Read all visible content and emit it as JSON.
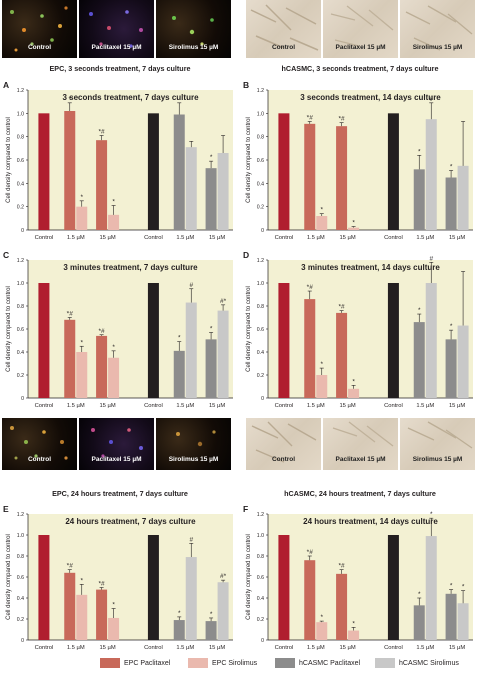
{
  "top_images": {
    "epc_labels": [
      "Control",
      "Paclitaxel 15 µM",
      "Sirolimus 15 µM"
    ],
    "hcasmc_labels": [
      "Control",
      "Paclitaxel 15 µM",
      "Sirolimus 15 µM"
    ],
    "epc_caption": "EPC, 3 seconds treatment, 7 days culture",
    "hcasmc_caption": "hCASMC, 3 seconds treatment, 7 days culture"
  },
  "mid_images": {
    "epc_labels": [
      "Control",
      "Paclitaxel 15 µM",
      "Sirolimus 15 µM"
    ],
    "hcasmc_labels": [
      "Control",
      "Paclitaxel 15 µM",
      "Sirolimus 15 µM"
    ],
    "epc_caption": "EPC, 24 hours treatment, 7 days culture",
    "hcasmc_caption": "hCASMC, 24 hours treatment, 7 days culture"
  },
  "legend": [
    {
      "label": "EPC Paclitaxel",
      "color": "#c8695a"
    },
    {
      "label": "EPC Sirolimus",
      "color": "#eab9ae"
    },
    {
      "label": "hCASMC Paclitaxel",
      "color": "#8c8c8c"
    },
    {
      "label": "hCASMC Sirolimus",
      "color": "#c8c8c8"
    }
  ],
  "colors": {
    "epc_control": "#b01e2f",
    "epc_paclitaxel": "#c8695a",
    "epc_sirolimus": "#eab9ae",
    "hcasmc_control": "#231f20",
    "hcasmc_paclitaxel": "#8c8c8c",
    "hcasmc_sirolimus": "#c8c8c8",
    "plot_bg": "#f3f1d3"
  },
  "chart_data": [
    {
      "letter": "A",
      "type": "bar",
      "title": "3 seconds treatment, 7 days culture",
      "ylabel": "Cell density compared to control",
      "ylim": [
        0,
        1.2
      ],
      "yticks": [
        0,
        0.2,
        0.4,
        0.6,
        0.8,
        1.0,
        1.2
      ],
      "categories": [
        "Control",
        "1.5 µM",
        "15 µM",
        "Control",
        "1.5 µM",
        "15 µM"
      ],
      "series": [
        {
          "name": "EPC Paclitaxel",
          "values": [
            1.0,
            1.02,
            0.77,
            null,
            null,
            null
          ],
          "errors": [
            0,
            0.07,
            0.04,
            null,
            null,
            null
          ],
          "marks": [
            "",
            "*",
            "*#",
            "",
            "",
            ""
          ]
        },
        {
          "name": "EPC Sirolimus",
          "values": [
            null,
            0.2,
            0.13,
            null,
            null,
            null
          ],
          "errors": [
            null,
            0.05,
            0.08,
            null,
            null,
            null
          ],
          "marks": [
            "",
            "*",
            "*",
            "",
            "",
            ""
          ]
        },
        {
          "name": "hCASMC Paclitaxel",
          "values": [
            null,
            null,
            null,
            1.0,
            0.99,
            0.53
          ],
          "errors": [
            null,
            null,
            null,
            0,
            0.1,
            0.06
          ],
          "marks": [
            "",
            "",
            "",
            "",
            "",
            "*"
          ]
        },
        {
          "name": "hCASMC Sirolimus",
          "values": [
            null,
            null,
            null,
            null,
            0.71,
            0.66
          ],
          "errors": [
            null,
            null,
            null,
            null,
            0.05,
            0.15
          ],
          "marks": [
            "",
            "",
            "",
            "",
            "",
            ""
          ]
        }
      ]
    },
    {
      "letter": "B",
      "type": "bar",
      "title": "3 seconds treatment, 14 days culture",
      "ylabel": "Cell density compared to control",
      "ylim": [
        0,
        1.2
      ],
      "yticks": [
        0,
        0.2,
        0.4,
        0.6,
        0.8,
        1.0,
        1.2
      ],
      "categories": [
        "Control",
        "1.5 µM",
        "15 µM",
        "Control",
        "1.5 µM",
        "15 µM"
      ],
      "series": [
        {
          "name": "EPC Paclitaxel",
          "values": [
            1.0,
            0.91,
            0.89,
            null,
            null,
            null
          ],
          "errors": [
            0,
            0.02,
            0.03,
            null,
            null,
            null
          ],
          "marks": [
            "",
            "*#",
            "*#",
            "",
            "",
            ""
          ]
        },
        {
          "name": "EPC Sirolimus",
          "values": [
            null,
            0.12,
            0.02,
            null,
            null,
            null
          ],
          "errors": [
            null,
            0.02,
            0.01,
            null,
            null,
            null
          ],
          "marks": [
            "",
            "*",
            "*",
            "",
            "",
            ""
          ]
        },
        {
          "name": "hCASMC Paclitaxel",
          "values": [
            null,
            null,
            null,
            1.0,
            0.52,
            0.45
          ],
          "errors": [
            null,
            null,
            null,
            0,
            0.12,
            0.06
          ],
          "marks": [
            "",
            "",
            "",
            "",
            "*",
            "*"
          ]
        },
        {
          "name": "hCASMC Sirolimus",
          "values": [
            null,
            null,
            null,
            null,
            0.95,
            0.55
          ],
          "errors": [
            null,
            null,
            null,
            null,
            0.14,
            0.38
          ],
          "marks": [
            "",
            "",
            "",
            "",
            "#",
            ""
          ]
        }
      ]
    },
    {
      "letter": "C",
      "type": "bar",
      "title": "3 minutes treatment, 7 days culture",
      "ylabel": "Cell density compared to control",
      "ylim": [
        0,
        1.2
      ],
      "yticks": [
        0,
        0.2,
        0.4,
        0.6,
        0.8,
        1.0,
        1.2
      ],
      "categories": [
        "Control",
        "1.5 µM",
        "15 µM",
        "Control",
        "1.5 µM",
        "15 µM"
      ],
      "series": [
        {
          "name": "EPC Paclitaxel",
          "values": [
            1.0,
            0.68,
            0.54,
            null,
            null,
            null
          ],
          "errors": [
            0,
            0.02,
            0.01,
            null,
            null,
            null
          ],
          "marks": [
            "",
            "*#",
            "*#",
            "",
            "",
            ""
          ]
        },
        {
          "name": "EPC Sirolimus",
          "values": [
            null,
            0.4,
            0.35,
            null,
            null,
            null
          ],
          "errors": [
            null,
            0.05,
            0.06,
            null,
            null,
            null
          ],
          "marks": [
            "",
            "*",
            "*",
            "",
            "",
            ""
          ]
        },
        {
          "name": "hCASMC Paclitaxel",
          "values": [
            null,
            null,
            null,
            1.0,
            0.41,
            0.51
          ],
          "errors": [
            null,
            null,
            null,
            0,
            0.08,
            0.06
          ],
          "marks": [
            "",
            "",
            "",
            "",
            "*",
            "*"
          ]
        },
        {
          "name": "hCASMC Sirolimus",
          "values": [
            null,
            null,
            null,
            null,
            0.83,
            0.76
          ],
          "errors": [
            null,
            null,
            null,
            null,
            0.12,
            0.05
          ],
          "marks": [
            "",
            "",
            "",
            "",
            "#",
            "#*"
          ]
        }
      ]
    },
    {
      "letter": "D",
      "type": "bar",
      "title": "3 minutes treatment, 14 days culture",
      "ylabel": "Cell density compared to control",
      "ylim": [
        0,
        1.2
      ],
      "yticks": [
        0,
        0.2,
        0.4,
        0.6,
        0.8,
        1.0,
        1.2
      ],
      "categories": [
        "Control",
        "1.5 µM",
        "15 µM",
        "Control",
        "1.5 µM",
        "15 µM"
      ],
      "series": [
        {
          "name": "EPC Paclitaxel",
          "values": [
            1.0,
            0.86,
            0.74,
            null,
            null,
            null
          ],
          "errors": [
            0,
            0.07,
            0.02,
            null,
            null,
            null
          ],
          "marks": [
            "",
            "*#",
            "*#",
            "",
            "",
            ""
          ]
        },
        {
          "name": "EPC Sirolimus",
          "values": [
            null,
            0.2,
            0.08,
            null,
            null,
            null
          ],
          "errors": [
            null,
            0.06,
            0.03,
            null,
            null,
            null
          ],
          "marks": [
            "",
            "*",
            "*",
            "",
            "",
            ""
          ]
        },
        {
          "name": "hCASMC Paclitaxel",
          "values": [
            null,
            null,
            null,
            1.0,
            0.66,
            0.51
          ],
          "errors": [
            null,
            null,
            null,
            0,
            0.07,
            0.08
          ],
          "marks": [
            "",
            "",
            "",
            "",
            "*",
            "*"
          ]
        },
        {
          "name": "hCASMC Sirolimus",
          "values": [
            null,
            null,
            null,
            null,
            1.0,
            0.63
          ],
          "errors": [
            null,
            null,
            null,
            null,
            0.18,
            0.47
          ],
          "marks": [
            "",
            "",
            "",
            "",
            "#",
            ""
          ]
        }
      ]
    },
    {
      "letter": "E",
      "type": "bar",
      "title": "24 hours treatment, 7 days culture",
      "ylabel": "Cell density compared to control",
      "ylim": [
        0,
        1.2
      ],
      "yticks": [
        0,
        0.2,
        0.4,
        0.6,
        0.8,
        1.0,
        1.2
      ],
      "categories": [
        "Control",
        "1.5 µM",
        "15 µM",
        "Control",
        "1.5 µM",
        "15 µM"
      ],
      "series": [
        {
          "name": "EPC Paclitaxel",
          "values": [
            1.0,
            0.64,
            0.48,
            null,
            null,
            null
          ],
          "errors": [
            0,
            0.03,
            0.02,
            null,
            null,
            null
          ],
          "marks": [
            "",
            "*#",
            "*#",
            "",
            "",
            ""
          ]
        },
        {
          "name": "EPC Sirolimus",
          "values": [
            null,
            0.43,
            0.21,
            null,
            null,
            null
          ],
          "errors": [
            null,
            0.1,
            0.09,
            null,
            null,
            null
          ],
          "marks": [
            "",
            "*",
            "*",
            "",
            "",
            ""
          ]
        },
        {
          "name": "hCASMC Paclitaxel",
          "values": [
            null,
            null,
            null,
            1.0,
            0.19,
            0.18
          ],
          "errors": [
            null,
            null,
            null,
            0,
            0.03,
            0.03
          ],
          "marks": [
            "",
            "",
            "",
            "",
            "*",
            "*"
          ]
        },
        {
          "name": "hCASMC Sirolimus",
          "values": [
            null,
            null,
            null,
            null,
            0.79,
            0.55
          ],
          "errors": [
            null,
            null,
            null,
            null,
            0.13,
            0.02
          ],
          "marks": [
            "",
            "",
            "",
            "",
            "#",
            "#*"
          ]
        }
      ]
    },
    {
      "letter": "F",
      "type": "bar",
      "title": "24 hours treatment, 14 days culture",
      "ylabel": "Cell density compared to control",
      "ylim": [
        0,
        1.2
      ],
      "yticks": [
        0,
        0.2,
        0.4,
        0.6,
        0.8,
        1.0,
        1.2
      ],
      "categories": [
        "Control",
        "1.5 µM",
        "15 µM",
        "Control",
        "1.5 µM",
        "15 µM"
      ],
      "series": [
        {
          "name": "EPC Paclitaxel",
          "values": [
            1.0,
            0.76,
            0.63,
            null,
            null,
            null
          ],
          "errors": [
            0,
            0.04,
            0.04,
            null,
            null,
            null
          ],
          "marks": [
            "",
            "*#",
            "*#",
            "",
            "",
            ""
          ]
        },
        {
          "name": "EPC Sirolimus",
          "values": [
            null,
            0.17,
            0.09,
            null,
            null,
            null
          ],
          "errors": [
            null,
            0.01,
            0.03,
            null,
            null,
            null
          ],
          "marks": [
            "",
            "*",
            "*",
            "",
            "",
            ""
          ]
        },
        {
          "name": "hCASMC Paclitaxel",
          "values": [
            null,
            null,
            null,
            1.0,
            0.33,
            0.44
          ],
          "errors": [
            null,
            null,
            null,
            0,
            0.07,
            0.04
          ],
          "marks": [
            "",
            "",
            "",
            "",
            "*",
            "*"
          ]
        },
        {
          "name": "hCASMC Sirolimus",
          "values": [
            null,
            null,
            null,
            null,
            0.99,
            0.35
          ],
          "errors": [
            null,
            null,
            null,
            null,
            0.17,
            0.12
          ],
          "marks": [
            "",
            "",
            "",
            "",
            "*",
            "*"
          ]
        }
      ]
    }
  ]
}
